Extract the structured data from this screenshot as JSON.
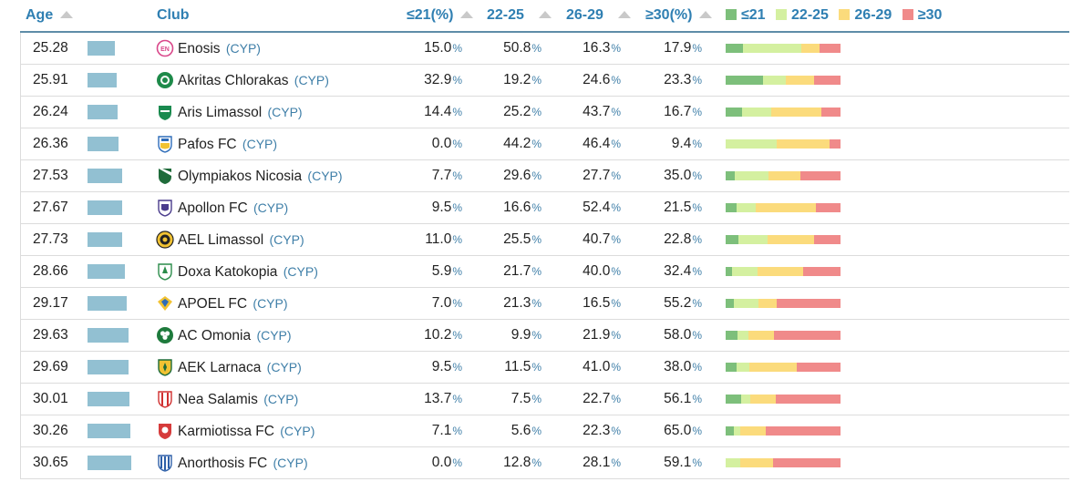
{
  "colors": {
    "u21": "#7dbf7b",
    "a22_25": "#d4f0a0",
    "a26_29": "#fbdb7c",
    "o30": "#f08a8a",
    "header": "#2f7fb2",
    "agebar": "#92c0d2"
  },
  "header": {
    "age": "Age",
    "club": "Club",
    "u21": "≤21(%)",
    "a22_25": "22-25",
    "a26_29": "26-29",
    "o30": "≥30(%)",
    "legend": {
      "u21": "≤21",
      "a22_25": "22-25",
      "a26_29": "26-29",
      "o30": "≥30"
    }
  },
  "pct_sign": "%",
  "clubs": [
    {
      "age": "25.28",
      "name": "Enosis",
      "country": "(CYP)",
      "icon": "enosis-crest-icon",
      "u21": "15.0",
      "a22_25": "50.8",
      "a26_29": "16.3",
      "o30": "17.9"
    },
    {
      "age": "25.91",
      "name": "Akritas Chlorakas",
      "country": "(CYP)",
      "icon": "akritas-crest-icon",
      "u21": "32.9",
      "a22_25": "19.2",
      "a26_29": "24.6",
      "o30": "23.3"
    },
    {
      "age": "26.24",
      "name": "Aris Limassol",
      "country": "(CYP)",
      "icon": "aris-crest-icon",
      "u21": "14.4",
      "a22_25": "25.2",
      "a26_29": "43.7",
      "o30": "16.7"
    },
    {
      "age": "26.36",
      "name": "Pafos FC",
      "country": "(CYP)",
      "icon": "pafos-crest-icon",
      "u21": "0.0",
      "a22_25": "44.2",
      "a26_29": "46.4",
      "o30": "9.4"
    },
    {
      "age": "27.53",
      "name": "Olympiakos Nicosia",
      "country": "(CYP)",
      "icon": "olympiakos-crest-icon",
      "u21": "7.7",
      "a22_25": "29.6",
      "a26_29": "27.7",
      "o30": "35.0"
    },
    {
      "age": "27.67",
      "name": "Apollon FC",
      "country": "(CYP)",
      "icon": "apollon-crest-icon",
      "u21": "9.5",
      "a22_25": "16.6",
      "a26_29": "52.4",
      "o30": "21.5"
    },
    {
      "age": "27.73",
      "name": "AEL Limassol",
      "country": "(CYP)",
      "icon": "ael-crest-icon",
      "u21": "11.0",
      "a22_25": "25.5",
      "a26_29": "40.7",
      "o30": "22.8"
    },
    {
      "age": "28.66",
      "name": "Doxa Katokopia",
      "country": "(CYP)",
      "icon": "doxa-crest-icon",
      "u21": "5.9",
      "a22_25": "21.7",
      "a26_29": "40.0",
      "o30": "32.4"
    },
    {
      "age": "29.17",
      "name": "APOEL FC",
      "country": "(CYP)",
      "icon": "apoel-crest-icon",
      "u21": "7.0",
      "a22_25": "21.3",
      "a26_29": "16.5",
      "o30": "55.2"
    },
    {
      "age": "29.63",
      "name": "AC Omonia",
      "country": "(CYP)",
      "icon": "omonia-crest-icon",
      "u21": "10.2",
      "a22_25": "9.9",
      "a26_29": "21.9",
      "o30": "58.0"
    },
    {
      "age": "29.69",
      "name": "AEK Larnaca",
      "country": "(CYP)",
      "icon": "aek-crest-icon",
      "u21": "9.5",
      "a22_25": "11.5",
      "a26_29": "41.0",
      "o30": "38.0"
    },
    {
      "age": "30.01",
      "name": "Nea Salamis",
      "country": "(CYP)",
      "icon": "nea-salamis-crest-icon",
      "u21": "13.7",
      "a22_25": "7.5",
      "a26_29": "22.7",
      "o30": "56.1"
    },
    {
      "age": "30.26",
      "name": "Karmiotissa FC",
      "country": "(CYP)",
      "icon": "karmiotissa-crest-icon",
      "u21": "7.1",
      "a22_25": "5.6",
      "a26_29": "22.3",
      "o30": "65.0"
    },
    {
      "age": "30.65",
      "name": "Anorthosis FC",
      "country": "(CYP)",
      "icon": "anorthosis-crest-icon",
      "u21": "0.0",
      "a22_25": "12.8",
      "a26_29": "28.1",
      "o30": "59.1"
    }
  ]
}
